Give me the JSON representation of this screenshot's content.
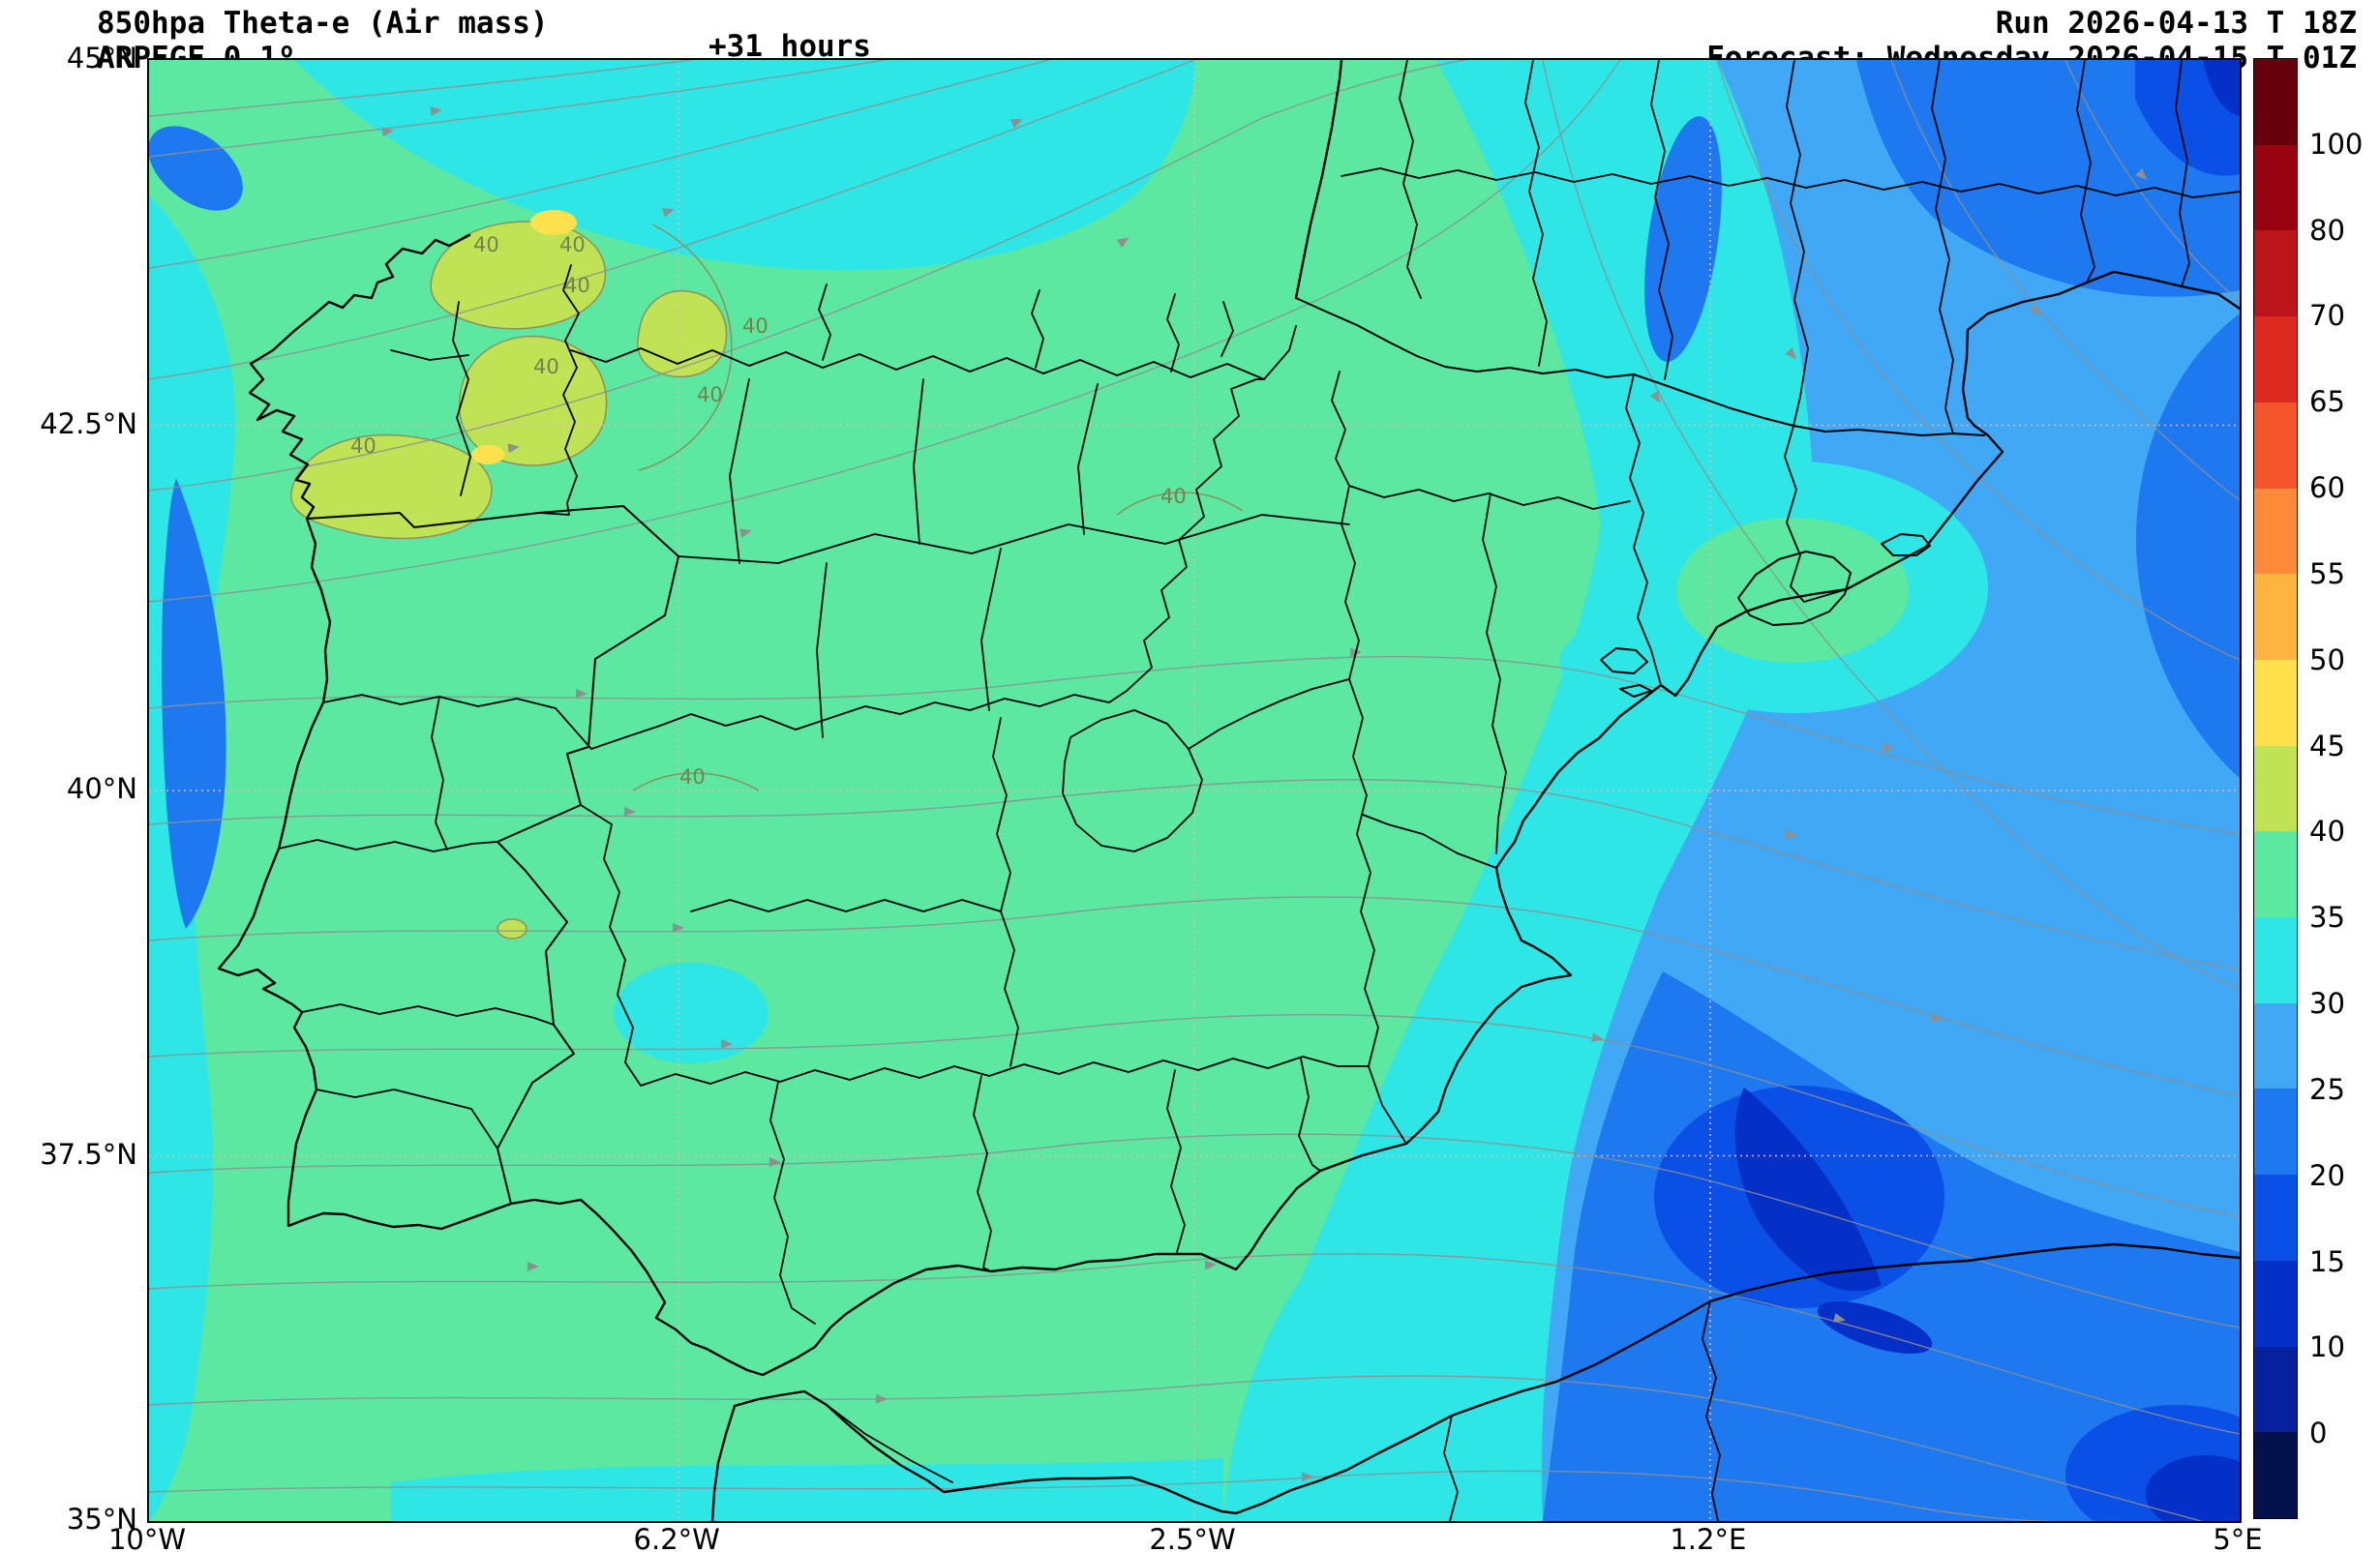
{
  "header": {
    "title": "850hpa Theta-e (Air mass)",
    "model": "ARPEGE 0.1º",
    "lead_time": "+31 hours",
    "run": "Run 2026-04-13 T 18Z",
    "forecast": "Forecast: Wednesday 2026-04-15 T 01Z"
  },
  "chart_data": {
    "type": "heatmap",
    "title": "850hpa Theta-e (Air mass)",
    "subtitle": "ARPEGE 0.1º",
    "lead_time": "+31 hours",
    "run": "Run 2026-04-13 T 18Z",
    "forecast": "Forecast: Wednesday 2026-04-15 T 01Z",
    "region": "Iberian Peninsula / western Mediterranean",
    "x_axis": {
      "range_deg": [
        -10,
        5
      ],
      "ticks": [
        {
          "value": -10,
          "label": "10°W"
        },
        {
          "value": -6.2,
          "label": "6.2°W"
        },
        {
          "value": -2.5,
          "label": "2.5°W"
        },
        {
          "value": 1.2,
          "label": "1.2°E"
        },
        {
          "value": 5,
          "label": "5°E"
        }
      ]
    },
    "y_axis": {
      "range_deg": [
        35,
        45
      ],
      "ticks": [
        {
          "value": 45,
          "label": "45°N"
        },
        {
          "value": 42.5,
          "label": "42.5°N"
        },
        {
          "value": 40,
          "label": "40°N"
        },
        {
          "value": 37.5,
          "label": "37.5°N"
        },
        {
          "value": 35,
          "label": "35°N"
        }
      ]
    },
    "grid_lines": {
      "x_deg": [
        -6.2,
        -2.5,
        1.2
      ],
      "y_deg": [
        42.5,
        40,
        37.5
      ],
      "color": "#e8b2b2"
    },
    "colorbar": {
      "tick_labels_top_to_bottom": [
        "100",
        "80",
        "70",
        "65",
        "60",
        "55",
        "50",
        "45",
        "40",
        "35",
        "30",
        "25",
        "20",
        "15",
        "10",
        "0"
      ],
      "segment_colors_top_to_bottom": [
        "#67000d",
        "#970310",
        "#bb1419",
        "#dd2a20",
        "#f4552b",
        "#fd8a3a",
        "#feb441",
        "#ffe04d",
        "#bfe355",
        "#5ce8a0",
        "#2fe6e6",
        "#41a8f5",
        "#1e78f0",
        "#0a50e6",
        "#0530c8",
        "#07209e",
        "#03124d"
      ]
    },
    "contour_label": "40",
    "field_regions": [
      {
        "region": "Iberian interior (dominant)",
        "theta_e": "35-40"
      },
      {
        "region": "Northwest Spain patches",
        "theta_e": "40-45 (small 45-50 spots)"
      },
      {
        "region": "Bay of Biscay / north coast",
        "theta_e": "30-35"
      },
      {
        "region": "Atlantic fringe west of Portugal",
        "theta_e": "25-35"
      },
      {
        "region": "East coast / Gulf of Lion / France NE corner",
        "theta_e": "20-30"
      },
      {
        "region": "Balearic Sea dark cores and SE corner",
        "theta_e": "10-20"
      }
    ],
    "overlays": [
      "850hPa wind streamlines (gray, arrowed)",
      "administrative boundaries (black)",
      "lat-lon grid (pink)"
    ]
  }
}
